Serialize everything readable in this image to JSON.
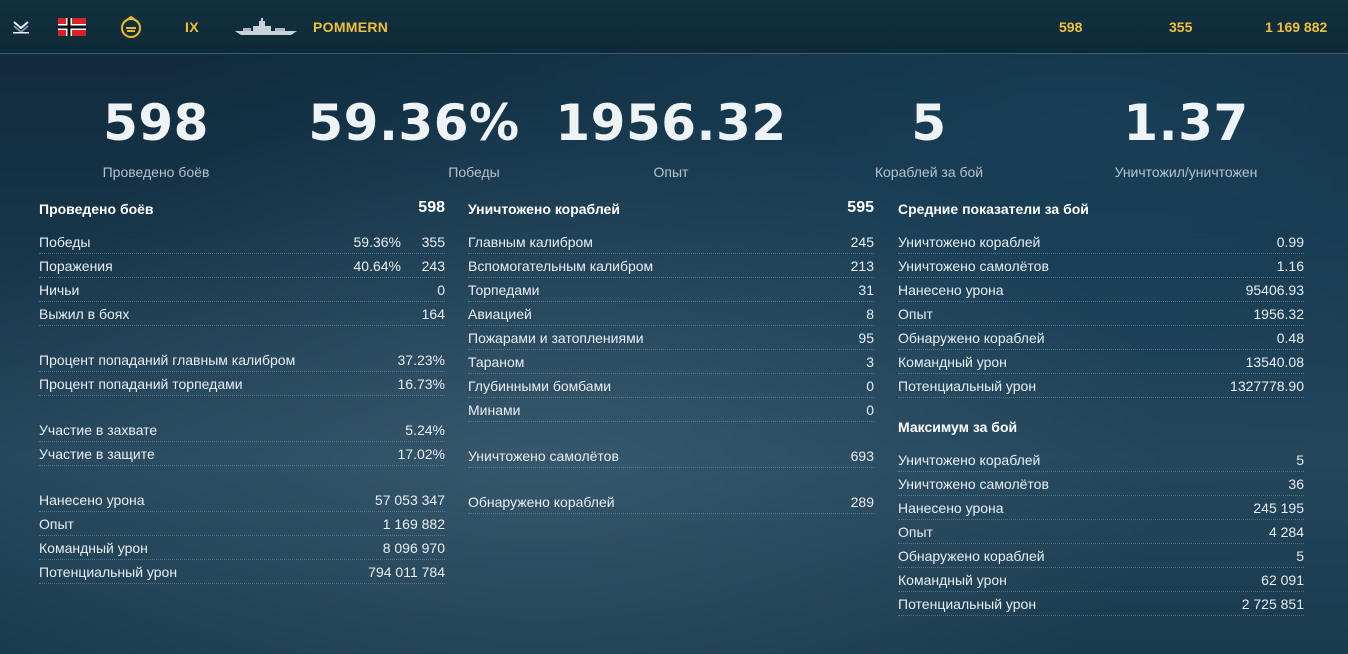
{
  "header": {
    "tier": "IX",
    "ship_name": "POMMERN",
    "battles": "598",
    "wins": "355",
    "exp": "1 169 882"
  },
  "icons": {
    "type": "battleship-class-icon",
    "nation": "germany-flag-icon",
    "elite": "elite-emblem-icon",
    "ship": "ship-silhouette-icon"
  },
  "big_stats": [
    {
      "value": "598",
      "label": "Проведено боёв"
    },
    {
      "value": "59.36%",
      "label": "Победы"
    },
    {
      "value": "1956.32",
      "label": "Опыт"
    },
    {
      "value": "5",
      "label": "Кораблей за бой"
    },
    {
      "value": "1.37",
      "label": "Уничтожил/уничтожен"
    }
  ],
  "col1": {
    "title": "Проведено боёв",
    "title_value": "598",
    "rows": [
      {
        "label": "Победы",
        "pct": "59.36%",
        "value": "355"
      },
      {
        "label": "Поражения",
        "pct": "40.64%",
        "value": "243"
      },
      {
        "label": "Ничьи",
        "value": "0"
      },
      {
        "label": "Выжил в боях",
        "value": "164"
      },
      {
        "label": "Процент попаданий главным калибром",
        "value": "37.23%"
      },
      {
        "label": "Процент попаданий торпедами",
        "value": "16.73%"
      },
      {
        "label": "Участие в захвате",
        "value": "5.24%"
      },
      {
        "label": "Участие в защите",
        "value": "17.02%"
      },
      {
        "label": "Нанесено урона",
        "value": "57 053 347"
      },
      {
        "label": "Опыт",
        "value": "1 169 882"
      },
      {
        "label": "Командный урон",
        "value": "8 096 970"
      },
      {
        "label": "Потенциальный урон",
        "value": "794 011 784"
      }
    ]
  },
  "col2": {
    "title": "Уничтожено кораблей",
    "title_value": "595",
    "rows": [
      {
        "label": "Главным калибром",
        "value": "245"
      },
      {
        "label": "Вспомогательным калибром",
        "value": "213"
      },
      {
        "label": "Торпедами",
        "value": "31"
      },
      {
        "label": "Авиацией",
        "value": "8"
      },
      {
        "label": "Пожарами и затоплениями",
        "value": "95"
      },
      {
        "label": "Тараном",
        "value": "3"
      },
      {
        "label": "Глубинными бомбами",
        "value": "0"
      },
      {
        "label": "Минами",
        "value": "0"
      },
      {
        "label": "Уничтожено самолётов",
        "value": "693"
      },
      {
        "label": "Обнаружено кораблей",
        "value": "289"
      }
    ]
  },
  "col3": {
    "title": "Средние показатели за бой",
    "rows": [
      {
        "label": "Уничтожено кораблей",
        "value": "0.99"
      },
      {
        "label": "Уничтожено самолётов",
        "value": "1.16"
      },
      {
        "label": "Нанесено урона",
        "value": "95406.93"
      },
      {
        "label": "Опыт",
        "value": "1956.32"
      },
      {
        "label": "Обнаружено кораблей",
        "value": "0.48"
      },
      {
        "label": "Командный урон",
        "value": "13540.08"
      },
      {
        "label": "Потенциальный урон",
        "value": "1327778.90"
      }
    ],
    "max_title": "Максимум за бой",
    "max_rows": [
      {
        "label": "Уничтожено кораблей",
        "value": "5"
      },
      {
        "label": "Уничтожено самолётов",
        "value": "36"
      },
      {
        "label": "Нанесено урона",
        "value": "245 195"
      },
      {
        "label": "Опыт",
        "value": "4 284"
      },
      {
        "label": "Обнаружено кораблей",
        "value": "5"
      },
      {
        "label": "Командный урон",
        "value": "62 091"
      },
      {
        "label": "Потенциальный урон",
        "value": "2 725 851"
      }
    ]
  }
}
